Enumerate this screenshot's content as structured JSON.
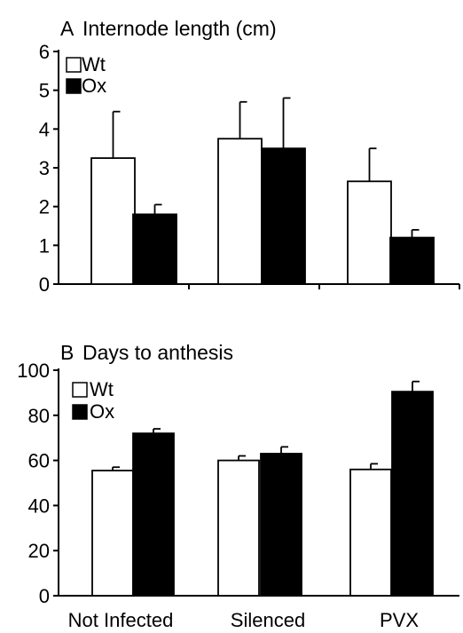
{
  "chart_data": [
    {
      "type": "bar",
      "panel": "A",
      "title": "Internode length (cm)",
      "categories": [
        "Not Infected",
        "Silenced",
        "PVX"
      ],
      "series": [
        {
          "name": "Wt",
          "values": [
            3.25,
            3.75,
            2.65
          ],
          "errors": [
            1.2,
            0.95,
            0.85
          ],
          "color": "#ffffff"
        },
        {
          "name": "Ox",
          "values": [
            1.8,
            3.5,
            1.2
          ],
          "errors": [
            0.25,
            1.3,
            0.2
          ],
          "color": "#000000"
        }
      ],
      "ylim": [
        0,
        6
      ],
      "yticks": [
        "0",
        "1",
        "2",
        "3",
        "4",
        "5",
        "6"
      ],
      "legend": "top-left",
      "grid": false
    },
    {
      "type": "bar",
      "panel": "B",
      "title": "Days to anthesis",
      "categories": [
        "Not Infected",
        "Silenced",
        "PVX"
      ],
      "series": [
        {
          "name": "Wt",
          "values": [
            55.5,
            60,
            56
          ],
          "errors": [
            1.5,
            2,
            2.5
          ],
          "color": "#ffffff"
        },
        {
          "name": "Ox",
          "values": [
            72,
            63,
            90.5
          ],
          "errors": [
            2,
            3,
            4.5
          ],
          "color": "#000000"
        }
      ],
      "ylim": [
        0,
        100
      ],
      "yticks": [
        "0",
        "20",
        "40",
        "60",
        "80",
        "100"
      ],
      "legend": "top-left",
      "grid": false
    }
  ]
}
